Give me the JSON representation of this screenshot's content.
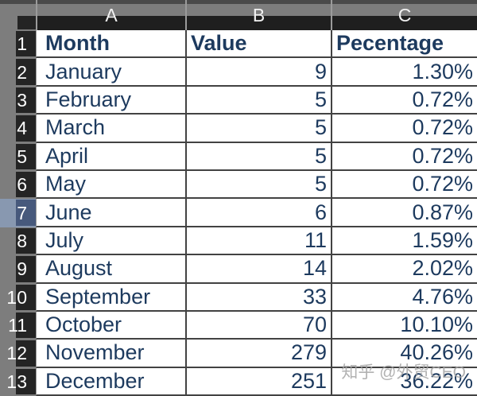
{
  "sheet": {
    "columns": {
      "a": "A",
      "b": "B",
      "c": "C"
    },
    "rows": [
      {
        "num": "1",
        "a": "Month",
        "b": "Value",
        "c": "Pecentage",
        "header": true
      },
      {
        "num": "2",
        "a": "January",
        "b": "9",
        "c": "1.30%"
      },
      {
        "num": "3",
        "a": "February",
        "b": "5",
        "c": "0.72%"
      },
      {
        "num": "4",
        "a": "March",
        "b": "5",
        "c": "0.72%"
      },
      {
        "num": "5",
        "a": "April",
        "b": "5",
        "c": "0.72%"
      },
      {
        "num": "6",
        "a": "May",
        "b": "5",
        "c": "0.72%"
      },
      {
        "num": "7",
        "a": "June",
        "b": "6",
        "c": "0.87%",
        "selected": true
      },
      {
        "num": "8",
        "a": "July",
        "b": "11",
        "c": "1.59%"
      },
      {
        "num": "9",
        "a": "August",
        "b": "14",
        "c": "2.02%"
      },
      {
        "num": "10",
        "a": "September",
        "b": "33",
        "c": "4.76%"
      },
      {
        "num": "11",
        "a": "October",
        "b": "70",
        "c": "10.10%"
      },
      {
        "num": "12",
        "a": "November",
        "b": "279",
        "c": "40.26%"
      },
      {
        "num": "13",
        "a": "December",
        "b": "251",
        "c": "36.22%"
      }
    ]
  },
  "watermark": "知乎 @外贸CEO",
  "colors": {
    "cell_text": "#1d3a5e",
    "header_gray": "#7d7d7d",
    "header_black": "#1f1f1f",
    "selected_row_header": "#47597c",
    "selected_row_strip": "#8898b0",
    "gridline": "#424242"
  }
}
